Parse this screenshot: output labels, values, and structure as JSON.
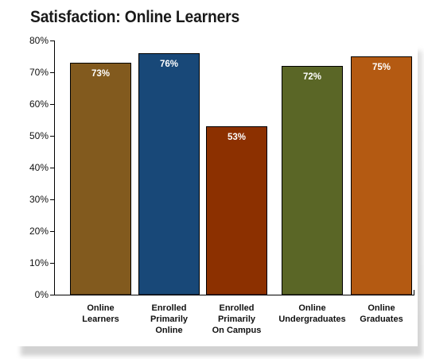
{
  "chart_data": {
    "type": "bar",
    "title": "Satisfaction: Online Learners",
    "xlabel": "",
    "ylabel": "",
    "ylim": [
      0,
      80
    ],
    "yticks": [
      "0%",
      "10%",
      "20%",
      "30%",
      "40%",
      "50%",
      "60%",
      "70%",
      "80%"
    ],
    "categories": [
      [
        "Online",
        "Learners"
      ],
      [
        "Enrolled",
        "Primarily",
        "Online"
      ],
      [
        "Enrolled",
        "Primarily",
        "On Campus"
      ],
      [
        "Online",
        "Undergraduates"
      ],
      [
        "Online",
        "Graduates"
      ]
    ],
    "values": [
      73,
      76,
      53,
      72,
      75
    ],
    "data_labels": [
      "73%",
      "76%",
      "53%",
      "72%",
      "75%"
    ],
    "colors": [
      "#825A1E",
      "#184878",
      "#8C3000",
      "#5A6626",
      "#B45A12"
    ],
    "grid": false,
    "legend": "none"
  }
}
